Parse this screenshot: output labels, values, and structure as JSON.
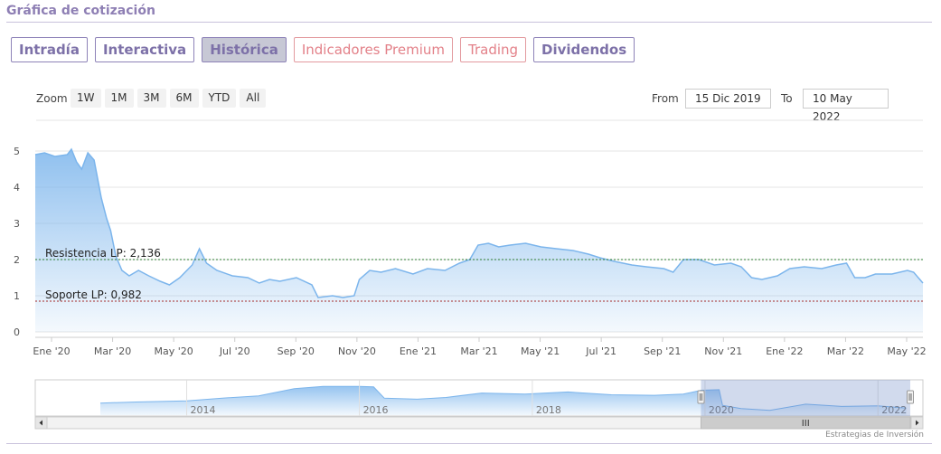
{
  "header": {
    "title": "Gráfica de cotización"
  },
  "tabs": [
    {
      "label": "Intradía",
      "style": "purple"
    },
    {
      "label": "Interactiva",
      "style": "purple"
    },
    {
      "label": "Histórica",
      "style": "active"
    },
    {
      "label": "Indicadores Premium",
      "style": "red"
    },
    {
      "label": "Trading",
      "style": "red"
    },
    {
      "label": "Dividendos",
      "style": "purple"
    }
  ],
  "range_selector": {
    "zoom_label": "Zoom",
    "buttons": [
      "1W",
      "1M",
      "3M",
      "6M",
      "YTD",
      "All"
    ],
    "from_label": "From",
    "from_value": "15 Dic 2019",
    "to_label": "To",
    "to_value": "10 May 2022"
  },
  "colors": {
    "series": "#7cb5ec",
    "accent": "#8e7fb4",
    "resistance": "#2e7d32",
    "support": "#a52a2a"
  },
  "chart_data": {
    "type": "area",
    "title": "",
    "xlabel": "",
    "ylabel": "",
    "ylim": [
      0,
      5
    ],
    "yticks": [
      "0",
      "1",
      "2",
      "3",
      "4",
      "5"
    ],
    "xticks": [
      "Ene '20",
      "Mar '20",
      "May '20",
      "Jul '20",
      "Sep '20",
      "Nov '20",
      "Ene '21",
      "Mar '21",
      "May '21",
      "Jul '21",
      "Sep '21",
      "Nov '21",
      "Ene '22",
      "Mar '22",
      "May '22"
    ],
    "grid": true,
    "legend": "none",
    "series": [
      {
        "points": [
          [
            "2020-01-01",
            4.9
          ],
          [
            "2020-01-10",
            4.95
          ],
          [
            "2020-01-20",
            4.85
          ],
          [
            "2020-02-01",
            4.9
          ],
          [
            "2020-02-05",
            5.05
          ],
          [
            "2020-02-10",
            4.7
          ],
          [
            "2020-02-15",
            4.5
          ],
          [
            "2020-02-21",
            4.95
          ],
          [
            "2020-02-27",
            4.75
          ],
          [
            "2020-03-05",
            3.7
          ],
          [
            "2020-03-10",
            3.15
          ],
          [
            "2020-03-14",
            2.8
          ],
          [
            "2020-03-19",
            2.1
          ],
          [
            "2020-03-25",
            1.7
          ],
          [
            "2020-04-01",
            1.55
          ],
          [
            "2020-04-10",
            1.7
          ],
          [
            "2020-04-20",
            1.55
          ],
          [
            "2020-05-01",
            1.4
          ],
          [
            "2020-05-10",
            1.3
          ],
          [
            "2020-05-20",
            1.5
          ],
          [
            "2020-06-01",
            1.85
          ],
          [
            "2020-06-08",
            2.3
          ],
          [
            "2020-06-15",
            1.9
          ],
          [
            "2020-06-25",
            1.7
          ],
          [
            "2020-07-10",
            1.55
          ],
          [
            "2020-07-25",
            1.5
          ],
          [
            "2020-08-05",
            1.35
          ],
          [
            "2020-08-15",
            1.45
          ],
          [
            "2020-08-25",
            1.4
          ],
          [
            "2020-09-10",
            1.5
          ],
          [
            "2020-09-25",
            1.3
          ],
          [
            "2020-10-01",
            0.95
          ],
          [
            "2020-10-15",
            1.0
          ],
          [
            "2020-10-25",
            0.95
          ],
          [
            "2020-11-05",
            1.0
          ],
          [
            "2020-11-10",
            1.45
          ],
          [
            "2020-11-20",
            1.7
          ],
          [
            "2020-12-01",
            1.65
          ],
          [
            "2020-12-15",
            1.75
          ],
          [
            "2021-01-01",
            1.6
          ],
          [
            "2021-01-15",
            1.75
          ],
          [
            "2021-02-01",
            1.7
          ],
          [
            "2021-02-15",
            1.9
          ],
          [
            "2021-02-25",
            2.0
          ],
          [
            "2021-03-05",
            2.4
          ],
          [
            "2021-03-15",
            2.45
          ],
          [
            "2021-03-25",
            2.35
          ],
          [
            "2021-04-05",
            2.4
          ],
          [
            "2021-04-20",
            2.45
          ],
          [
            "2021-05-05",
            2.35
          ],
          [
            "2021-05-20",
            2.3
          ],
          [
            "2021-06-05",
            2.25
          ],
          [
            "2021-06-20",
            2.15
          ],
          [
            "2021-07-01",
            2.05
          ],
          [
            "2021-07-15",
            1.95
          ],
          [
            "2021-08-01",
            1.85
          ],
          [
            "2021-08-15",
            1.8
          ],
          [
            "2021-09-01",
            1.75
          ],
          [
            "2021-09-10",
            1.65
          ],
          [
            "2021-09-20",
            2.0
          ],
          [
            "2021-10-05",
            2.0
          ],
          [
            "2021-10-20",
            1.85
          ],
          [
            "2021-11-05",
            1.9
          ],
          [
            "2021-11-15",
            1.8
          ],
          [
            "2021-11-25",
            1.5
          ],
          [
            "2021-12-05",
            1.45
          ],
          [
            "2021-12-20",
            1.55
          ],
          [
            "2022-01-01",
            1.75
          ],
          [
            "2022-01-15",
            1.8
          ],
          [
            "2022-02-01",
            1.75
          ],
          [
            "2022-02-15",
            1.85
          ],
          [
            "2022-02-25",
            1.9
          ],
          [
            "2022-03-05",
            1.5
          ],
          [
            "2022-03-15",
            1.5
          ],
          [
            "2022-03-25",
            1.6
          ],
          [
            "2022-04-10",
            1.6
          ],
          [
            "2022-04-25",
            1.7
          ],
          [
            "2022-05-01",
            1.65
          ],
          [
            "2022-05-10",
            1.35
          ]
        ]
      }
    ],
    "annotations": [
      {
        "label": "Resistencia LP: 2,136",
        "value": 2.0
      },
      {
        "label": "Soporte LP: 0,982",
        "value": 0.85
      }
    ]
  },
  "navigator": {
    "year_labels": [
      "2014",
      "2016",
      "2018",
      "2020",
      "2022"
    ],
    "points": [
      [
        "2013-01-01",
        2.0
      ],
      [
        "2013-06-01",
        2.2
      ],
      [
        "2014-01-01",
        2.4
      ],
      [
        "2014-06-01",
        2.9
      ],
      [
        "2014-11-01",
        3.3
      ],
      [
        "2015-04-01",
        4.6
      ],
      [
        "2015-08-01",
        5.0
      ],
      [
        "2016-01-01",
        5.0
      ],
      [
        "2016-03-01",
        4.9
      ],
      [
        "2016-04-15",
        2.9
      ],
      [
        "2016-09-01",
        2.7
      ],
      [
        "2017-01-01",
        3.0
      ],
      [
        "2017-06-01",
        3.8
      ],
      [
        "2017-12-01",
        3.6
      ],
      [
        "2018-06-01",
        4.0
      ],
      [
        "2018-12-01",
        3.5
      ],
      [
        "2019-06-01",
        3.4
      ],
      [
        "2019-10-01",
        3.6
      ],
      [
        "2019-12-15",
        4.3
      ],
      [
        "2020-03-01",
        4.4
      ],
      [
        "2020-03-15",
        1.6
      ],
      [
        "2020-06-01",
        1.0
      ],
      [
        "2020-10-01",
        0.7
      ],
      [
        "2021-03-01",
        1.8
      ],
      [
        "2021-08-01",
        1.4
      ],
      [
        "2022-01-01",
        1.5
      ],
      [
        "2022-05-01",
        1.1
      ]
    ]
  },
  "credit": "Estrategias de Inversión"
}
